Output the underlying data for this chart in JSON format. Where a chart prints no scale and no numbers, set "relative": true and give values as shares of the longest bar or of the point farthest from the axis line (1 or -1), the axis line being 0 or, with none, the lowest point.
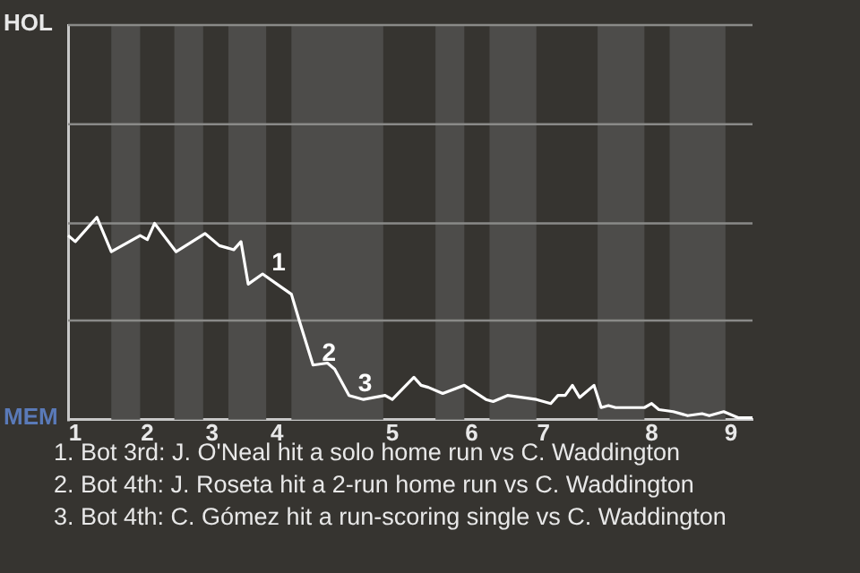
{
  "chart_data": {
    "type": "line",
    "relative": true,
    "categories": [
      null,
      "1",
      null,
      null,
      null,
      null,
      null,
      null,
      null,
      null,
      null,
      "2",
      null,
      null,
      null,
      null,
      null,
      null,
      null,
      null,
      "3",
      null,
      null,
      null,
      null,
      null,
      null,
      null,
      null,
      "4",
      null,
      null,
      null,
      null,
      null,
      null,
      null,
      null,
      null,
      null,
      null,
      null,
      null,
      null,
      null,
      "5",
      null,
      null,
      null,
      null,
      null,
      null,
      null,
      null,
      null,
      null,
      "6",
      null,
      null,
      null,
      null,
      null,
      null,
      null,
      null,
      null,
      "7",
      null,
      null,
      null,
      null,
      null,
      null,
      null,
      null,
      null,
      null,
      null,
      null,
      null,
      null,
      "8",
      null,
      null,
      null,
      null,
      null,
      null,
      null,
      null,
      null,
      null,
      "9",
      null,
      null,
      null
    ],
    "series": [
      {
        "values": [
          0.91,
          0.88,
          null,
          null,
          1,
          null,
          0.83,
          null,
          null,
          null,
          0.91,
          0.89,
          0.97,
          null,
          null,
          0.83,
          null,
          null,
          null,
          0.92,
          null,
          0.86,
          null,
          0.84,
          0.88,
          0.67,
          null,
          0.72,
          null,
          0.67,
          null,
          0.62,
          0.5,
          null,
          0.27,
          null,
          0.28,
          0.25,
          null,
          0.12,
          null,
          0.1,
          null,
          null,
          0.12,
          0.1,
          null,
          null,
          0.21,
          0.17,
          0.16,
          null,
          0.13,
          null,
          null,
          0.17,
          null,
          null,
          0.1,
          0.09,
          null,
          0.12,
          null,
          null,
          null,
          0.1,
          null,
          0.08,
          0.12,
          0.12,
          0.17,
          0.11,
          null,
          0.17,
          0.06,
          0.07,
          0.06,
          null,
          null,
          null,
          0.06,
          0.08,
          0.05,
          null,
          0.04,
          null,
          0.02,
          null,
          0.03,
          0.02,
          null,
          0.04,
          null,
          0.01,
          null,
          0.01
        ],
        "color": "#ffffff"
      }
    ],
    "marker": "none",
    "line_style": "solid",
    "ref_lines": [
      {
        "axis": "y",
        "value": 0.49,
        "color": "#8a8a88"
      },
      {
        "axis": "y",
        "value": 0.97,
        "color": "#8a8a88"
      },
      {
        "axis": "y",
        "value": 1.46,
        "color": "#8a8a88"
      }
    ],
    "annotations": [
      {
        "text": "1",
        "y": 0.72
      },
      {
        "text": "2",
        "y": 0.27
      },
      {
        "text": "3",
        "y": 0.12
      },
      "HOL",
      "MEM",
      "1. Bot 3rd: J. O'Neal hit a solo home run vs C. Waddington",
      "2. Bot 4th: J. Roseta hit a 2-run home run vs C. Waddington",
      "3. Bot 4th: C. Gómez hit a run-scoring single vs C. Waddington"
    ]
  }
}
